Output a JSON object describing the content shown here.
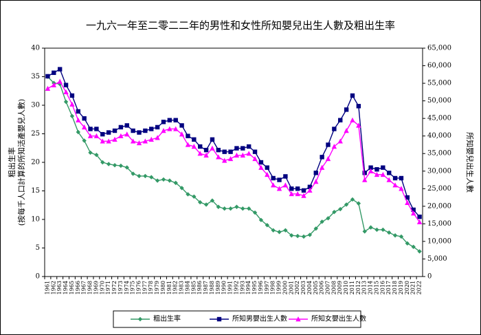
{
  "chart_data": {
    "type": "line",
    "title": "一九六一年至二零二二年的男性和女性所知嬰兒出生人數及粗出生率",
    "y_label": [
      "粗出生率",
      "(按每千人口計算的所知活產嬰兒人數)"
    ],
    "y2_label": "所知嬰兒出生人數",
    "categories": [
      "1961",
      "1962",
      "1963",
      "1964",
      "1965",
      "1966",
      "1967",
      "1968",
      "1969",
      "1970",
      "1971",
      "1972",
      "1973",
      "1974",
      "1975",
      "1976",
      "1977",
      "1978",
      "1979",
      "1980",
      "1981",
      "1982",
      "1983",
      "1984",
      "1985",
      "1986",
      "1987",
      "1988",
      "1989",
      "1990",
      "1991",
      "1992",
      "1993",
      "1994",
      "1995",
      "1996",
      "1997",
      "1998",
      "1999",
      "2000",
      "2001",
      "2002",
      "2003",
      "2004",
      "2005",
      "2006",
      "2007",
      "2008",
      "2009",
      "2010",
      "2011",
      "2012",
      "2013",
      "2014",
      "2015",
      "2016",
      "2017",
      "2018",
      "2019",
      "2020",
      "2021",
      "2022"
    ],
    "ylim": [
      0,
      40
    ],
    "yticks": [
      0,
      5,
      10,
      15,
      20,
      25,
      30,
      35,
      40
    ],
    "y2lim": [
      0,
      65000
    ],
    "y2ticks": [
      0,
      {
        "value": 5000,
        "label": "5,000"
      },
      {
        "value": 10000,
        "label": "10,000"
      },
      {
        "value": 15000,
        "label": "15,000"
      },
      {
        "value": 20000,
        "label": "20,000"
      },
      {
        "value": 25000,
        "label": "25,000"
      },
      {
        "value": 30000,
        "label": "30,000"
      },
      {
        "value": 35000,
        "label": "35,000"
      },
      {
        "value": 40000,
        "label": "40,000"
      },
      {
        "value": 45000,
        "label": "45,000"
      },
      {
        "value": 50000,
        "label": "50,000"
      },
      {
        "value": 55000,
        "label": "55,000"
      },
      {
        "value": 60000,
        "label": "60,000"
      },
      {
        "value": 65000,
        "label": "65,000"
      }
    ],
    "legend": "bottom",
    "series": [
      {
        "name": "粗出生率",
        "color": "#339966",
        "marker": "diamond",
        "axis": "y",
        "values": [
          35.0,
          33.9,
          33.7,
          30.6,
          28.1,
          25.3,
          23.8,
          21.7,
          21.3,
          20.0,
          19.7,
          19.5,
          19.4,
          19.1,
          18.0,
          17.6,
          17.6,
          17.4,
          16.8,
          17.0,
          16.8,
          16.4,
          15.5,
          14.4,
          14.0,
          13.0,
          12.6,
          13.3,
          12.2,
          11.9,
          11.9,
          12.2,
          11.9,
          11.9,
          11.2,
          9.9,
          9.0,
          8.1,
          7.8,
          8.1,
          7.2,
          7.1,
          7.0,
          7.3,
          8.4,
          9.6,
          10.2,
          11.3,
          11.8,
          12.6,
          13.5,
          12.8,
          7.9,
          8.6,
          8.2,
          8.2,
          7.7,
          7.2,
          7.0,
          5.8,
          5.2,
          4.4
        ]
      },
      {
        "name": "所知男嬰出生人數",
        "color": "#000080",
        "marker": "square",
        "axis": "y2",
        "values": [
          57000,
          58000,
          59000,
          54500,
          51500,
          47000,
          45000,
          42000,
          42000,
          40500,
          41000,
          41500,
          42500,
          43000,
          41500,
          41000,
          41500,
          42000,
          42500,
          44000,
          44500,
          44500,
          43000,
          40000,
          39000,
          37000,
          36000,
          39000,
          36000,
          35500,
          35500,
          36500,
          36500,
          37000,
          35500,
          32500,
          31000,
          28000,
          27500,
          28500,
          25000,
          25000,
          24500,
          25500,
          29500,
          34000,
          37500,
          42000,
          44500,
          47500,
          51500,
          48500,
          29500,
          31000,
          30500,
          31000,
          29500,
          28000,
          28000,
          22500,
          19000,
          17000
        ]
      },
      {
        "name": "所知女嬰出生人數",
        "color": "#ff00ff",
        "marker": "triangle",
        "axis": "y2",
        "values": [
          53500,
          54500,
          55500,
          52500,
          49000,
          44500,
          42500,
          40000,
          40000,
          38500,
          38500,
          39000,
          40000,
          40500,
          38500,
          38000,
          38500,
          39000,
          39500,
          41500,
          42000,
          42000,
          40500,
          37500,
          37000,
          35000,
          34500,
          36500,
          34000,
          33000,
          33500,
          34500,
          34500,
          35000,
          33500,
          31000,
          29000,
          26000,
          25000,
          26000,
          23500,
          23500,
          23000,
          24500,
          27000,
          31000,
          33500,
          37000,
          38500,
          41500,
          44500,
          43000,
          27500,
          30000,
          29000,
          29000,
          27500,
          26000,
          25000,
          21000,
          18000,
          15500
        ]
      }
    ]
  }
}
